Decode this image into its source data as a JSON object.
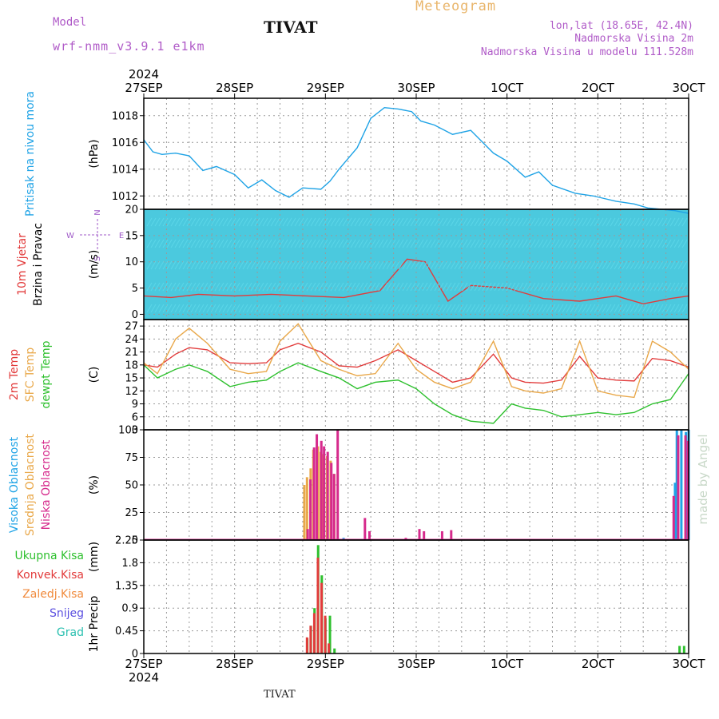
{
  "header": {
    "model_label": "Model",
    "model_name": "wrf-nmm_v3.9.1 e1km",
    "station": "TIVAT",
    "title": "Meteogram",
    "lonlat": "lon,lat (18.65E, 42.4N)",
    "elevation": "Nadmorska Visina 2m",
    "model_elevation": "Nadmorska Visina u modelu 111.528m"
  },
  "footer": {
    "station": "TIVAT"
  },
  "watermark": "made by Angel",
  "time_axis": {
    "year": "2024",
    "labels": [
      "27SEP",
      "28SEP",
      "29SEP",
      "30SEP",
      "1OCT",
      "2OCT",
      "3OCT"
    ],
    "days_span": 6
  },
  "chart_data": [
    {
      "type": "line",
      "panel": "pressure",
      "ylabel": "Pritisak na nivou mora",
      "unit": "(hPa)",
      "yticks": [
        "1012",
        "1014",
        "1016",
        "1018"
      ],
      "ylim": [
        1011,
        1019.3
      ],
      "grid": true,
      "series": [
        {
          "name": "Pritisak na nivou mora",
          "color": "#1fa3e6",
          "x": [
            0,
            0.1,
            0.2,
            0.35,
            0.5,
            0.65,
            0.8,
            1.0,
            1.15,
            1.3,
            1.45,
            1.6,
            1.75,
            1.95,
            2.05,
            2.15,
            2.35,
            2.5,
            2.65,
            2.8,
            2.95,
            3.05,
            3.2,
            3.4,
            3.6,
            3.85,
            4.0,
            4.2,
            4.35,
            4.5,
            4.75,
            4.95,
            5.2,
            5.4,
            5.55,
            5.7,
            5.85,
            6.0
          ],
          "y": [
            1016.2,
            1015.3,
            1015.1,
            1015.2,
            1015.0,
            1013.9,
            1014.2,
            1013.6,
            1012.6,
            1013.2,
            1012.4,
            1011.9,
            1012.6,
            1012.5,
            1013.1,
            1014.0,
            1015.6,
            1017.8,
            1018.6,
            1018.5,
            1018.3,
            1017.6,
            1017.3,
            1016.6,
            1016.9,
            1015.2,
            1014.6,
            1013.4,
            1013.8,
            1012.8,
            1012.2,
            1012.0,
            1011.6,
            1011.4,
            1011.1,
            1011.0,
            1010.9,
            1010.7
          ]
        }
      ]
    },
    {
      "type": "line",
      "panel": "wind",
      "ylabel": [
        "10m Vjetar",
        "Brzina i Pravac"
      ],
      "unit": "(m/s)",
      "compass": {
        "north": "N",
        "east": "E",
        "west": "W",
        "south": "S"
      },
      "yticks": [
        "0",
        "5",
        "10",
        "15",
        "20"
      ],
      "ylim": [
        -1,
        20
      ],
      "grid": true,
      "background": {
        "color": "#2bc0d8"
      },
      "series": [
        {
          "name": "10m Vjetar",
          "color": "#e23b3b",
          "x": [
            0,
            0.3,
            0.6,
            1.0,
            1.4,
            1.8,
            2.2,
            2.6,
            2.9,
            3.1,
            3.35,
            3.6,
            4.0,
            4.4,
            4.8,
            5.2,
            5.5,
            5.8,
            6.0
          ],
          "y": [
            3.5,
            3.2,
            3.8,
            3.5,
            3.8,
            3.5,
            3.2,
            4.5,
            10.5,
            10.0,
            2.5,
            5.5,
            5.0,
            3.0,
            2.5,
            3.5,
            2.0,
            3.0,
            3.5
          ]
        }
      ]
    },
    {
      "type": "line",
      "panel": "temperature",
      "ylabel": [
        "2m Temp",
        "SFC Temp",
        "dewpt Temp"
      ],
      "unit": "(C)",
      "yticks": [
        "3",
        "6",
        "9",
        "12",
        "15",
        "18",
        "21",
        "24",
        "27"
      ],
      "ylim": [
        3,
        28.5
      ],
      "grid": true,
      "series": [
        {
          "name": "2m Temp",
          "color": "#e23b3b",
          "x": [
            0,
            0.15,
            0.35,
            0.5,
            0.7,
            0.95,
            1.15,
            1.35,
            1.5,
            1.7,
            1.95,
            2.15,
            2.35,
            2.55,
            2.8,
            3.0,
            3.2,
            3.4,
            3.6,
            3.85,
            4.05,
            4.2,
            4.4,
            4.6,
            4.8,
            5.0,
            5.2,
            5.4,
            5.6,
            5.8,
            6.0
          ],
          "y": [
            18,
            17.5,
            20.5,
            22,
            21.5,
            18.5,
            18.3,
            18.5,
            21.5,
            23,
            21,
            17.8,
            17.5,
            19,
            21.5,
            19,
            16.5,
            14,
            15,
            20.5,
            15,
            14,
            13.8,
            14.5,
            20,
            15,
            14.5,
            14.3,
            19.5,
            19,
            17.5
          ]
        },
        {
          "name": "SFC Temp",
          "color": "#e9a84a",
          "x": [
            0,
            0.15,
            0.35,
            0.5,
            0.7,
            0.95,
            1.15,
            1.35,
            1.5,
            1.7,
            1.95,
            2.15,
            2.35,
            2.55,
            2.8,
            3.0,
            3.2,
            3.4,
            3.6,
            3.85,
            4.05,
            4.2,
            4.4,
            4.6,
            4.8,
            5.0,
            5.2,
            5.4,
            5.6,
            5.8,
            6.0
          ],
          "y": [
            18.5,
            16,
            24,
            26.5,
            23,
            17,
            16,
            16.5,
            23.5,
            27.5,
            19,
            17,
            15.5,
            16,
            23,
            17,
            14,
            12.5,
            14,
            23.5,
            13,
            12,
            11.5,
            12.5,
            23.5,
            12,
            11,
            10.5,
            23.5,
            21,
            17
          ]
        },
        {
          "name": "dewpt Temp",
          "color": "#2ec02e",
          "x": [
            0,
            0.15,
            0.35,
            0.5,
            0.7,
            0.95,
            1.15,
            1.35,
            1.5,
            1.7,
            1.95,
            2.15,
            2.35,
            2.55,
            2.8,
            3.0,
            3.2,
            3.4,
            3.6,
            3.85,
            4.05,
            4.2,
            4.4,
            4.6,
            4.8,
            5.0,
            5.2,
            5.4,
            5.6,
            5.8,
            6.0
          ],
          "y": [
            18,
            15,
            17,
            18,
            16.5,
            13,
            14,
            14.5,
            16.5,
            18.5,
            16.5,
            15,
            12.5,
            14,
            14.5,
            12.5,
            9,
            6.5,
            5,
            4.5,
            9,
            8,
            7.5,
            6,
            6.5,
            7,
            6.5,
            7,
            9,
            10,
            16
          ]
        }
      ]
    },
    {
      "type": "bar",
      "panel": "cloud",
      "ylabel": [
        "Visoka Oblacnost",
        "Srednja Oblacnost",
        "Niska Oblacnost"
      ],
      "unit": "(%)",
      "yticks": [
        "0",
        "25",
        "50",
        "75",
        "100"
      ],
      "ylim": [
        0,
        100
      ],
      "grid": true,
      "series": [
        {
          "name": "Visoka Oblacnost",
          "color": "#1fa3e6",
          "x": [
            2.05,
            2.12,
            2.2,
            3.3,
            5.85,
            5.87,
            5.92,
            5.97,
            6.0
          ],
          "y": [
            1,
            1,
            2,
            1,
            52,
            100,
            100,
            98,
            100
          ]
        },
        {
          "name": "Srednja Oblacnost",
          "color": "#e9a84a",
          "x": [
            1.75,
            1.78,
            1.82,
            1.85,
            1.9,
            1.93,
            1.96,
            2.0,
            2.04,
            2.08
          ],
          "y": [
            50,
            57,
            65,
            82,
            85,
            80,
            78,
            76,
            72,
            60
          ]
        },
        {
          "name": "Niska Oblacnost",
          "color": "#d62a8c",
          "x": [
            1.77,
            1.8,
            1.84,
            1.87,
            1.92,
            1.95,
            1.99,
            2.03,
            2.06,
            2.1,
            2.2,
            2.4,
            2.45,
            2.85,
            3.0,
            3.05,
            3.25,
            3.35,
            5.8,
            5.85,
            5.93,
            5.96
          ],
          "y": [
            10,
            55,
            84,
            96,
            90,
            85,
            80,
            70,
            60,
            100,
            1,
            20,
            8,
            2,
            10,
            8,
            8,
            9,
            40,
            95,
            95,
            90
          ]
        }
      ]
    },
    {
      "type": "bar",
      "panel": "precipitation",
      "ylabel": "1hr Precip",
      "unit": "(mm)",
      "legend": [
        {
          "label": "Ukupna Kisa",
          "color": "#2ec02e"
        },
        {
          "label": "Konvek.Kisa",
          "color": "#e23b3b"
        },
        {
          "label": "Zaledj.Kisa",
          "color": "#f08a3c"
        },
        {
          "label": "Snijeg",
          "color": "#5b4fe0"
        },
        {
          "label": "Grad",
          "color": "#2bc0b0"
        }
      ],
      "yticks": [
        "0",
        "0.45",
        "0.9",
        "1.35",
        "1.8",
        "2.25"
      ],
      "ylim": [
        0,
        2.25
      ],
      "grid": true,
      "series": [
        {
          "name": "Ukupna Kisa",
          "color": "#2ec02e",
          "x": [
            1.8,
            1.84,
            1.88,
            1.92,
            1.96,
            2.0,
            2.05,
            2.1,
            5.9,
            5.95
          ],
          "y": [
            0.3,
            0.55,
            0.9,
            2.15,
            1.55,
            0.7,
            0.75,
            0.1,
            0.15,
            0.15
          ]
        },
        {
          "name": "Konvek.Kisa",
          "color": "#e23b3b",
          "x": [
            1.78,
            1.82,
            1.86,
            1.9,
            1.94,
            1.98,
            2.02
          ],
          "y": [
            0.32,
            0.55,
            0.8,
            1.9,
            1.4,
            0.75,
            0.2
          ]
        }
      ]
    }
  ]
}
